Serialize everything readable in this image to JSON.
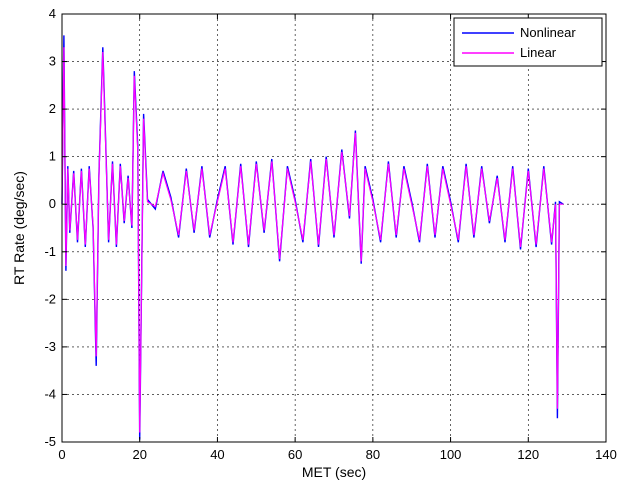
{
  "chart_data": {
    "type": "line",
    "title": "",
    "xlabel": "MET (sec)",
    "ylabel": "RT Rate (deg/sec)",
    "xlim": [
      0,
      140
    ],
    "ylim": [
      -5,
      4
    ],
    "x_ticks": [
      0,
      20,
      40,
      60,
      80,
      100,
      120,
      140
    ],
    "y_ticks": [
      -5,
      -4,
      -3,
      -2,
      -1,
      0,
      1,
      2,
      3,
      4
    ],
    "x_tick_labels": [
      "0",
      "20",
      "40",
      "60",
      "80",
      "100",
      "120",
      "140"
    ],
    "y_tick_labels": [
      "-5",
      "-4",
      "-3",
      "-2",
      "-1",
      "0",
      "1",
      "2",
      "3",
      "4"
    ],
    "grid": true,
    "legend_position": "top-right",
    "series": [
      {
        "name": "Nonlinear",
        "color": "#0000ff",
        "x": [
          0,
          0.5,
          1,
          1.5,
          2,
          3,
          4,
          5,
          6,
          7,
          8,
          8.8,
          9.5,
          10.5,
          11,
          12,
          13,
          14,
          15,
          16,
          17,
          18,
          18.6,
          19.5,
          20,
          21,
          22,
          24,
          26,
          28,
          30,
          32,
          34,
          36,
          38,
          40,
          42,
          44,
          46,
          48,
          50,
          52,
          54,
          56,
          58,
          60,
          62,
          64,
          66,
          68,
          70,
          72,
          74,
          75.5,
          77,
          78,
          80,
          82,
          84,
          86,
          88,
          90,
          92,
          94,
          96,
          98,
          100,
          102,
          104,
          106,
          108,
          110,
          112,
          114,
          116,
          118,
          120,
          122,
          124,
          126,
          127,
          127.5,
          128,
          129
        ],
        "y": [
          0,
          3.55,
          -1.4,
          0.8,
          -0.6,
          0.7,
          -0.8,
          0.75,
          -0.9,
          0.8,
          -0.5,
          -3.4,
          0.6,
          3.3,
          2.0,
          -0.8,
          0.9,
          -0.9,
          0.85,
          -0.4,
          0.6,
          -0.5,
          2.8,
          1.2,
          -4.95,
          1.9,
          0.1,
          -0.1,
          0.7,
          0.15,
          -0.7,
          0.75,
          -0.6,
          0.8,
          -0.7,
          0.1,
          0.8,
          -0.85,
          0.85,
          -0.9,
          0.9,
          -0.6,
          0.95,
          -1.2,
          0.8,
          0.1,
          -0.8,
          0.95,
          -0.9,
          1.0,
          -0.7,
          1.15,
          -0.3,
          1.55,
          -1.25,
          0.8,
          0.1,
          -0.8,
          0.9,
          -0.7,
          0.8,
          0.05,
          -0.8,
          0.85,
          -0.7,
          0.8,
          0.05,
          -0.8,
          0.85,
          -0.7,
          0.8,
          -0.4,
          0.6,
          -0.8,
          0.8,
          -0.95,
          0.75,
          -0.9,
          0.8,
          -0.85,
          0.05,
          -4.5,
          0.05,
          0.0
        ]
      },
      {
        "name": "Linear",
        "color": "#ff00ff",
        "x": [
          0,
          0.5,
          1,
          1.5,
          2,
          3,
          4,
          5,
          6,
          7,
          8,
          8.8,
          9.5,
          10.5,
          11,
          12,
          13,
          14,
          15,
          16,
          17,
          18,
          18.6,
          19.5,
          20,
          21,
          22,
          24,
          26,
          28,
          30,
          32,
          34,
          36,
          38,
          40,
          42,
          44,
          46,
          48,
          50,
          52,
          54,
          56,
          58,
          60,
          62,
          64,
          66,
          68,
          70,
          72,
          74,
          75.5,
          77,
          78,
          80,
          82,
          84,
          86,
          88,
          90,
          92,
          94,
          96,
          98,
          100,
          102,
          104,
          106,
          108,
          110,
          112,
          114,
          116,
          118,
          120,
          122,
          124,
          126,
          127,
          127.5,
          128,
          129
        ],
        "y": [
          0,
          3.3,
          -1.3,
          0.75,
          -0.55,
          0.65,
          -0.75,
          0.7,
          -0.85,
          0.75,
          -0.45,
          -3.2,
          0.55,
          3.2,
          1.9,
          -0.75,
          0.85,
          -0.85,
          0.8,
          -0.35,
          0.55,
          -0.45,
          2.7,
          1.1,
          -4.8,
          1.8,
          0.05,
          -0.05,
          0.65,
          0.1,
          -0.65,
          0.7,
          -0.55,
          0.75,
          -0.65,
          0.05,
          0.75,
          -0.8,
          0.8,
          -0.85,
          0.85,
          -0.55,
          0.9,
          -1.15,
          0.75,
          0.05,
          -0.75,
          0.9,
          -0.85,
          0.95,
          -0.65,
          1.1,
          -0.25,
          1.5,
          -1.2,
          0.75,
          0.05,
          -0.75,
          0.85,
          -0.65,
          0.75,
          0.0,
          -0.75,
          0.8,
          -0.65,
          0.75,
          0.0,
          -0.75,
          0.8,
          -0.65,
          0.75,
          -0.35,
          0.55,
          -0.75,
          0.75,
          -0.9,
          0.7,
          -0.85,
          0.75,
          -0.8,
          0.0,
          -4.3,
          0.0,
          0.0
        ]
      }
    ]
  }
}
